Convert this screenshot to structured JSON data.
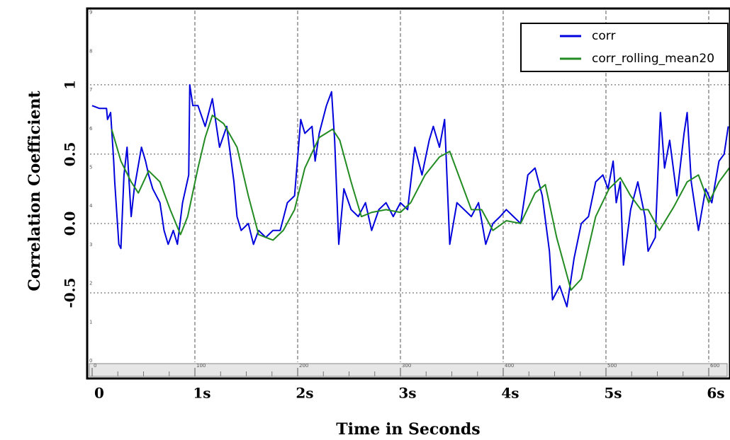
{
  "chart_data": {
    "type": "line",
    "x_label": "Time in Seconds",
    "y_label": "Correlation Coefficient",
    "xlim": [
      -0.055,
      6.207
    ],
    "ylim": [
      -1.0,
      1.535
    ],
    "xticks": [
      0,
      {
        "value": 1,
        "label": "1s"
      },
      {
        "value": 2,
        "label": "2s"
      },
      {
        "value": 3,
        "label": "3s"
      },
      {
        "value": 4,
        "label": "4s"
      },
      {
        "value": 5,
        "label": "5s"
      },
      {
        "value": 6,
        "label": "6s"
      }
    ],
    "yticks": [
      -0.5,
      {
        "value": 0,
        "label": "0.0"
      },
      0.5,
      1
    ],
    "grid": true,
    "legend": "upper right",
    "ruler_xticks": [
      0,
      100,
      200,
      300,
      400,
      500,
      600
    ],
    "ruler_yticks": [
      0,
      1,
      2,
      3,
      4,
      5,
      6,
      7,
      8,
      9
    ],
    "series": [
      {
        "name": "corr",
        "color": "#0000dd",
        "x": [
          0,
          0.07,
          0.14,
          0.15,
          0.18,
          0.21,
          0.22,
          0.26,
          0.28,
          0.31,
          0.34,
          0.38,
          0.41,
          0.48,
          0.52,
          0.55,
          0.59,
          0.66,
          0.7,
          0.74,
          0.79,
          0.83,
          0.88,
          0.91,
          0.94,
          0.95,
          0.98,
          1.03,
          1.1,
          1.17,
          1.24,
          1.31,
          1.38,
          1.41,
          1.45,
          1.52,
          1.57,
          1.62,
          1.69,
          1.76,
          1.83,
          1.9,
          1.97,
          2.03,
          2.07,
          2.14,
          2.17,
          2.21,
          2.28,
          2.33,
          2.36,
          2.4,
          2.45,
          2.52,
          2.59,
          2.66,
          2.72,
          2.79,
          2.86,
          2.93,
          3.0,
          3.07,
          3.14,
          3.21,
          3.28,
          3.32,
          3.38,
          3.43,
          3.48,
          3.55,
          3.62,
          3.69,
          3.76,
          3.83,
          3.9,
          3.97,
          4.03,
          4.1,
          4.17,
          4.24,
          4.31,
          4.38,
          4.45,
          4.48,
          4.55,
          4.62,
          4.69,
          4.76,
          4.83,
          4.9,
          4.97,
          5.02,
          5.07,
          5.1,
          5.14,
          5.17,
          5.24,
          5.31,
          5.38,
          5.41,
          5.48,
          5.53,
          5.57,
          5.62,
          5.69,
          5.76,
          5.79,
          5.83,
          5.9,
          5.97,
          6.03,
          6.1,
          6.15,
          6.19
        ],
        "values": [
          0.85,
          0.83,
          0.83,
          0.75,
          0.8,
          0.45,
          0.3,
          -0.15,
          -0.18,
          0.35,
          0.55,
          0.05,
          0.25,
          0.55,
          0.45,
          0.35,
          0.25,
          0.15,
          -0.05,
          -0.15,
          -0.05,
          -0.15,
          0.15,
          0.25,
          0.35,
          1.0,
          0.85,
          0.85,
          0.7,
          0.9,
          0.55,
          0.7,
          0.3,
          0.05,
          -0.05,
          0.0,
          -0.15,
          -0.05,
          -0.1,
          -0.05,
          -0.05,
          0.15,
          0.2,
          0.75,
          0.65,
          0.7,
          0.45,
          0.65,
          0.85,
          0.95,
          0.6,
          -0.15,
          0.25,
          0.1,
          0.05,
          0.15,
          -0.05,
          0.1,
          0.15,
          0.05,
          0.15,
          0.1,
          0.55,
          0.35,
          0.6,
          0.7,
          0.55,
          0.75,
          -0.15,
          0.15,
          0.1,
          0.05,
          0.15,
          -0.15,
          0.0,
          0.05,
          0.1,
          0.05,
          0.0,
          0.35,
          0.4,
          0.2,
          -0.2,
          -0.55,
          -0.45,
          -0.6,
          -0.25,
          0.0,
          0.05,
          0.3,
          0.35,
          0.25,
          0.45,
          0.15,
          0.3,
          -0.3,
          0.1,
          0.3,
          0.05,
          -0.2,
          -0.1,
          0.8,
          0.4,
          0.6,
          0.2,
          0.65,
          0.8,
          0.3,
          -0.05,
          0.25,
          0.15,
          0.45,
          0.5,
          0.7
        ]
      },
      {
        "name": "corr_rolling_mean20",
        "color": "#228b22",
        "x": [
          0.19,
          0.28,
          0.38,
          0.45,
          0.55,
          0.66,
          0.76,
          0.86,
          0.93,
          1.03,
          1.1,
          1.17,
          1.28,
          1.41,
          1.52,
          1.62,
          1.76,
          1.86,
          1.97,
          2.07,
          2.21,
          2.34,
          2.41,
          2.52,
          2.62,
          2.72,
          2.86,
          3.0,
          3.1,
          3.24,
          3.38,
          3.48,
          3.59,
          3.69,
          3.79,
          3.9,
          4.03,
          4.17,
          4.31,
          4.41,
          4.52,
          4.66,
          4.76,
          4.9,
          5.03,
          5.14,
          5.24,
          5.34,
          5.41,
          5.52,
          5.66,
          5.79,
          5.9,
          6.0,
          6.1,
          6.2
        ],
        "values": [
          0.68,
          0.45,
          0.3,
          0.22,
          0.38,
          0.3,
          0.1,
          -0.08,
          0.05,
          0.4,
          0.62,
          0.78,
          0.72,
          0.55,
          0.2,
          -0.08,
          -0.12,
          -0.05,
          0.1,
          0.4,
          0.62,
          0.68,
          0.6,
          0.3,
          0.05,
          0.08,
          0.1,
          0.08,
          0.15,
          0.35,
          0.48,
          0.52,
          0.3,
          0.1,
          0.1,
          -0.05,
          0.02,
          0.0,
          0.22,
          0.28,
          -0.1,
          -0.48,
          -0.4,
          0.05,
          0.25,
          0.33,
          0.2,
          0.1,
          0.1,
          -0.05,
          0.12,
          0.3,
          0.35,
          0.15,
          0.3,
          0.4
        ]
      }
    ]
  }
}
